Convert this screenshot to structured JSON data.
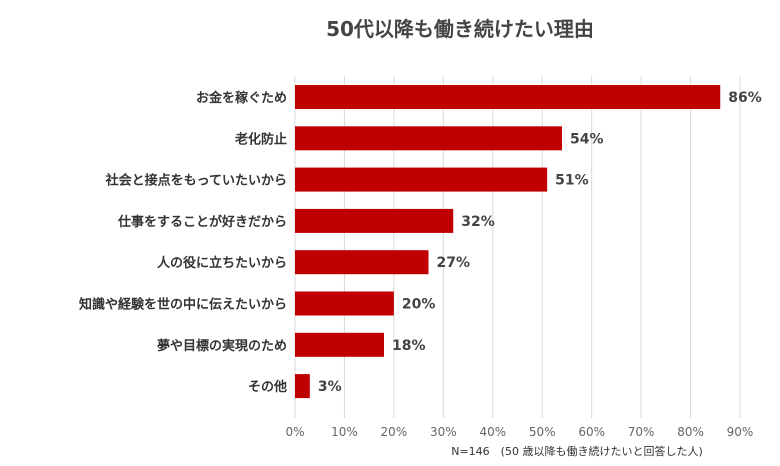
{
  "chart_data": {
    "type": "bar",
    "orientation": "horizontal",
    "title": "50代以降も働き続けたい理由",
    "categories": [
      "お金を稼ぐため",
      "老化防止",
      "社会と接点をもっていたいから",
      "仕事をすることが好きだから",
      "人の役に立ちたいから",
      "知識や経験を世の中に伝えたいから",
      "夢や目標の実現のため",
      "その他"
    ],
    "values": [
      86,
      54,
      51,
      32,
      27,
      20,
      18,
      3
    ],
    "value_labels": [
      "86%",
      "54%",
      "51%",
      "32%",
      "27%",
      "20%",
      "18%",
      "3%"
    ],
    "xlim": [
      0,
      90
    ],
    "x_ticks": [
      "0%",
      "10%",
      "20%",
      "30%",
      "40%",
      "50%",
      "60%",
      "70%",
      "80%",
      "90%"
    ],
    "grid": true,
    "note": "N=146　(50 歳以降も働き続けたいと回答した人)",
    "colors": {
      "bar": "#c00000"
    }
  }
}
